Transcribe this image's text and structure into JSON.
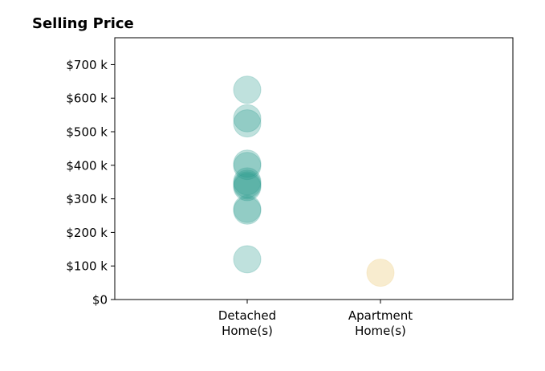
{
  "chart_data": {
    "type": "scatter",
    "title": "Selling Price",
    "xlabel": "",
    "ylabel": "",
    "categories": [
      [
        "Detached",
        "Home(s)"
      ],
      [
        "Apartment",
        "Home(s)"
      ]
    ],
    "ylim": [
      0,
      780000
    ],
    "y_ticks": [
      {
        "value": 0,
        "label": "$0"
      },
      {
        "value": 100000,
        "label": "$100 k"
      },
      {
        "value": 200000,
        "label": "$200 k"
      },
      {
        "value": 300000,
        "label": "$300 k"
      },
      {
        "value": 400000,
        "label": "$400 k"
      },
      {
        "value": 500000,
        "label": "$500 k"
      },
      {
        "value": 600000,
        "label": "$600 k"
      },
      {
        "value": 700000,
        "label": "$700 k"
      }
    ],
    "grid": false,
    "series": [
      {
        "category_index": 0,
        "color": "#2a9d8f",
        "values": [
          625000,
          540000,
          525000,
          405000,
          398000,
          352000,
          345000,
          340000,
          335000,
          270000,
          265000,
          120000
        ]
      },
      {
        "category_index": 1,
        "color": "#f2d9a0",
        "values": [
          80000
        ]
      }
    ]
  }
}
